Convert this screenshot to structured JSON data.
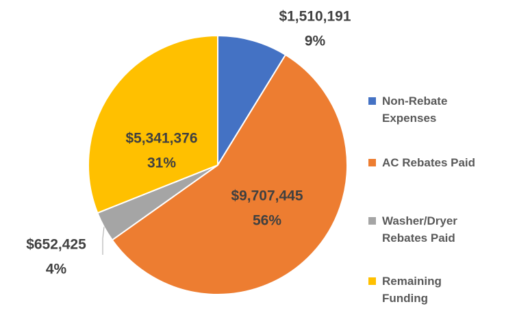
{
  "chart_data": {
    "type": "pie",
    "categories": [
      "Non-Rebate Expenses",
      "AC Rebates Paid",
      "Washer/Dryer Rebates Paid",
      "Remaining Funding"
    ],
    "values": [
      1510191,
      9707445,
      652425,
      5341376
    ],
    "value_labels": [
      "$1,510,191",
      "$9,707,445",
      "$652,425",
      "$5,341,376"
    ],
    "percent_labels": [
      "9%",
      "56%",
      "4%",
      "31%"
    ],
    "colors": [
      "#4472c4",
      "#ed7d31",
      "#a5a5a5",
      "#ffc000"
    ],
    "legend": "right"
  }
}
